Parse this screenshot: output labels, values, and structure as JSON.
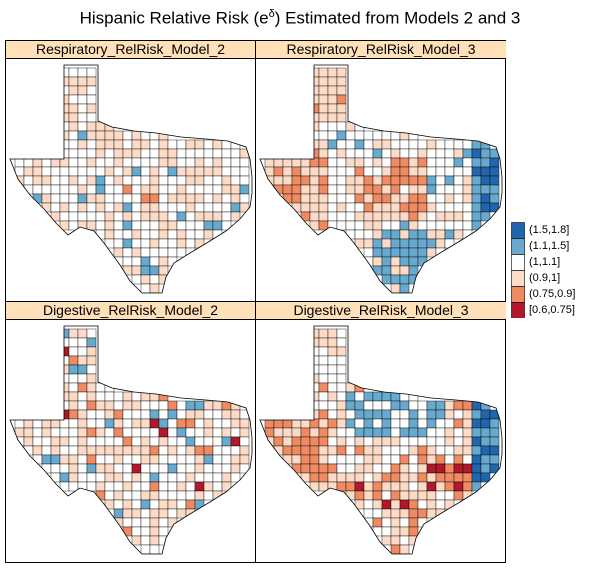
{
  "title_text": "Hispanic Relative Risk (e",
  "title_sup": "δ",
  "title_tail": ") Estimated from Models 2 and 3",
  "panels": [
    {
      "strip": "Respiratory_RelRisk_Model_2",
      "pattern": "resp2"
    },
    {
      "strip": "Respiratory_RelRisk_Model_3",
      "pattern": "resp3"
    },
    {
      "strip": "Digestive_RelRisk_Model_2",
      "pattern": "dig2"
    },
    {
      "strip": "Digestive_RelRisk_Model_3",
      "pattern": "dig3"
    }
  ],
  "legend": {
    "items": [
      {
        "label": "(1.5,1.8]",
        "color": "#2166ac"
      },
      {
        "label": "(1.1,1.5]",
        "color": "#67a9cf"
      },
      {
        "label": "(1,1.1]",
        "color": "#ffffff"
      },
      {
        "label": "(0.9,1]",
        "color": "#fddbc7"
      },
      {
        "label": "(0.75,0.9]",
        "color": "#ef8a62"
      },
      {
        "label": "[0.6,0.75]",
        "color": "#b2182b"
      }
    ]
  }
}
